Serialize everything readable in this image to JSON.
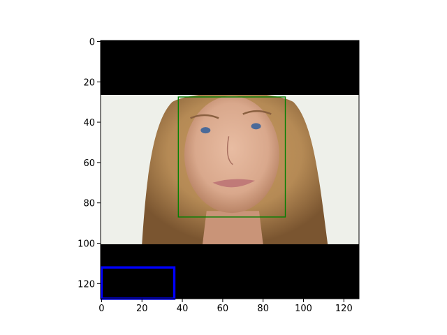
{
  "chart_data": {
    "type": "image",
    "title": "",
    "xlabel": "",
    "ylabel": "",
    "xlim": [
      -0.5,
      127.5
    ],
    "ylim": [
      127.5,
      -0.5
    ],
    "y_inverted": true,
    "grid": false,
    "x_ticks": [
      0,
      20,
      40,
      60,
      80,
      100,
      120
    ],
    "y_ticks": [
      0,
      20,
      40,
      60,
      80,
      100,
      120
    ],
    "image_content": {
      "letterbox_top_rows": [
        0,
        26.5
      ],
      "photo_rows": [
        26.5,
        100.5
      ],
      "letterbox_bottom_rows": [
        100.5,
        127.5
      ],
      "letterbox_color": "#000000"
    },
    "boxes": [
      {
        "x0": 38,
        "y0": 27.5,
        "x1": 91,
        "y1": 87,
        "color": "#008000",
        "linewidth": 1
      },
      {
        "x0": 0,
        "y0": 112,
        "x1": 36,
        "y1": 127.5,
        "color": "#0000ff",
        "linewidth": 2.5
      }
    ],
    "colors": {
      "axis": "#000000",
      "skin": "#d9a88c",
      "hair": "#b58a55",
      "background": "#eef0ea"
    }
  }
}
